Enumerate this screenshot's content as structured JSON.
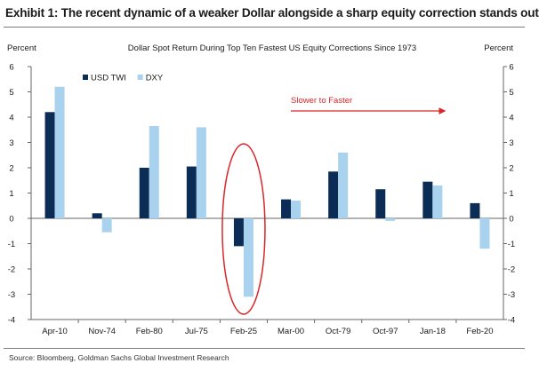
{
  "exhibit_title": "Exhibit 1: The recent dynamic of a weaker Dollar alongside a sharp equity correction stands out",
  "source": "Source: Bloomberg, Goldman Sachs Global Investment Research",
  "chart_data": {
    "type": "bar",
    "title": "Dollar Spot Return During Top Ten Fastest US Equity Corrections Since 1973",
    "ylabel_left": "Percent",
    "ylabel_right": "Percent",
    "ylim": [
      -4,
      6
    ],
    "yticks": [
      6,
      5,
      4,
      3,
      2,
      1,
      0,
      -1,
      -2,
      -3,
      -4
    ],
    "categories": [
      "Apr-10",
      "Nov-74",
      "Feb-80",
      "Jul-75",
      "Feb-25",
      "Mar-00",
      "Oct-79",
      "Oct-97",
      "Jan-18",
      "Feb-20"
    ],
    "series": [
      {
        "name": "USD TWI",
        "color": "#0b2d55",
        "values": [
          4.2,
          0.2,
          2.0,
          2.05,
          -1.1,
          0.75,
          1.85,
          1.15,
          1.45,
          0.6
        ]
      },
      {
        "name": "DXY",
        "color": "#a9d2ee",
        "values": [
          5.2,
          -0.55,
          3.65,
          3.6,
          -3.1,
          0.7,
          2.6,
          -0.1,
          1.3,
          -1.2
        ]
      }
    ],
    "legend_position": "top-left",
    "annotation": {
      "text": "Slower to Faster",
      "color": "#d9262b"
    },
    "highlight": {
      "category": "Feb-25",
      "shape": "ellipse",
      "color": "#d9262b"
    },
    "grid": false
  }
}
